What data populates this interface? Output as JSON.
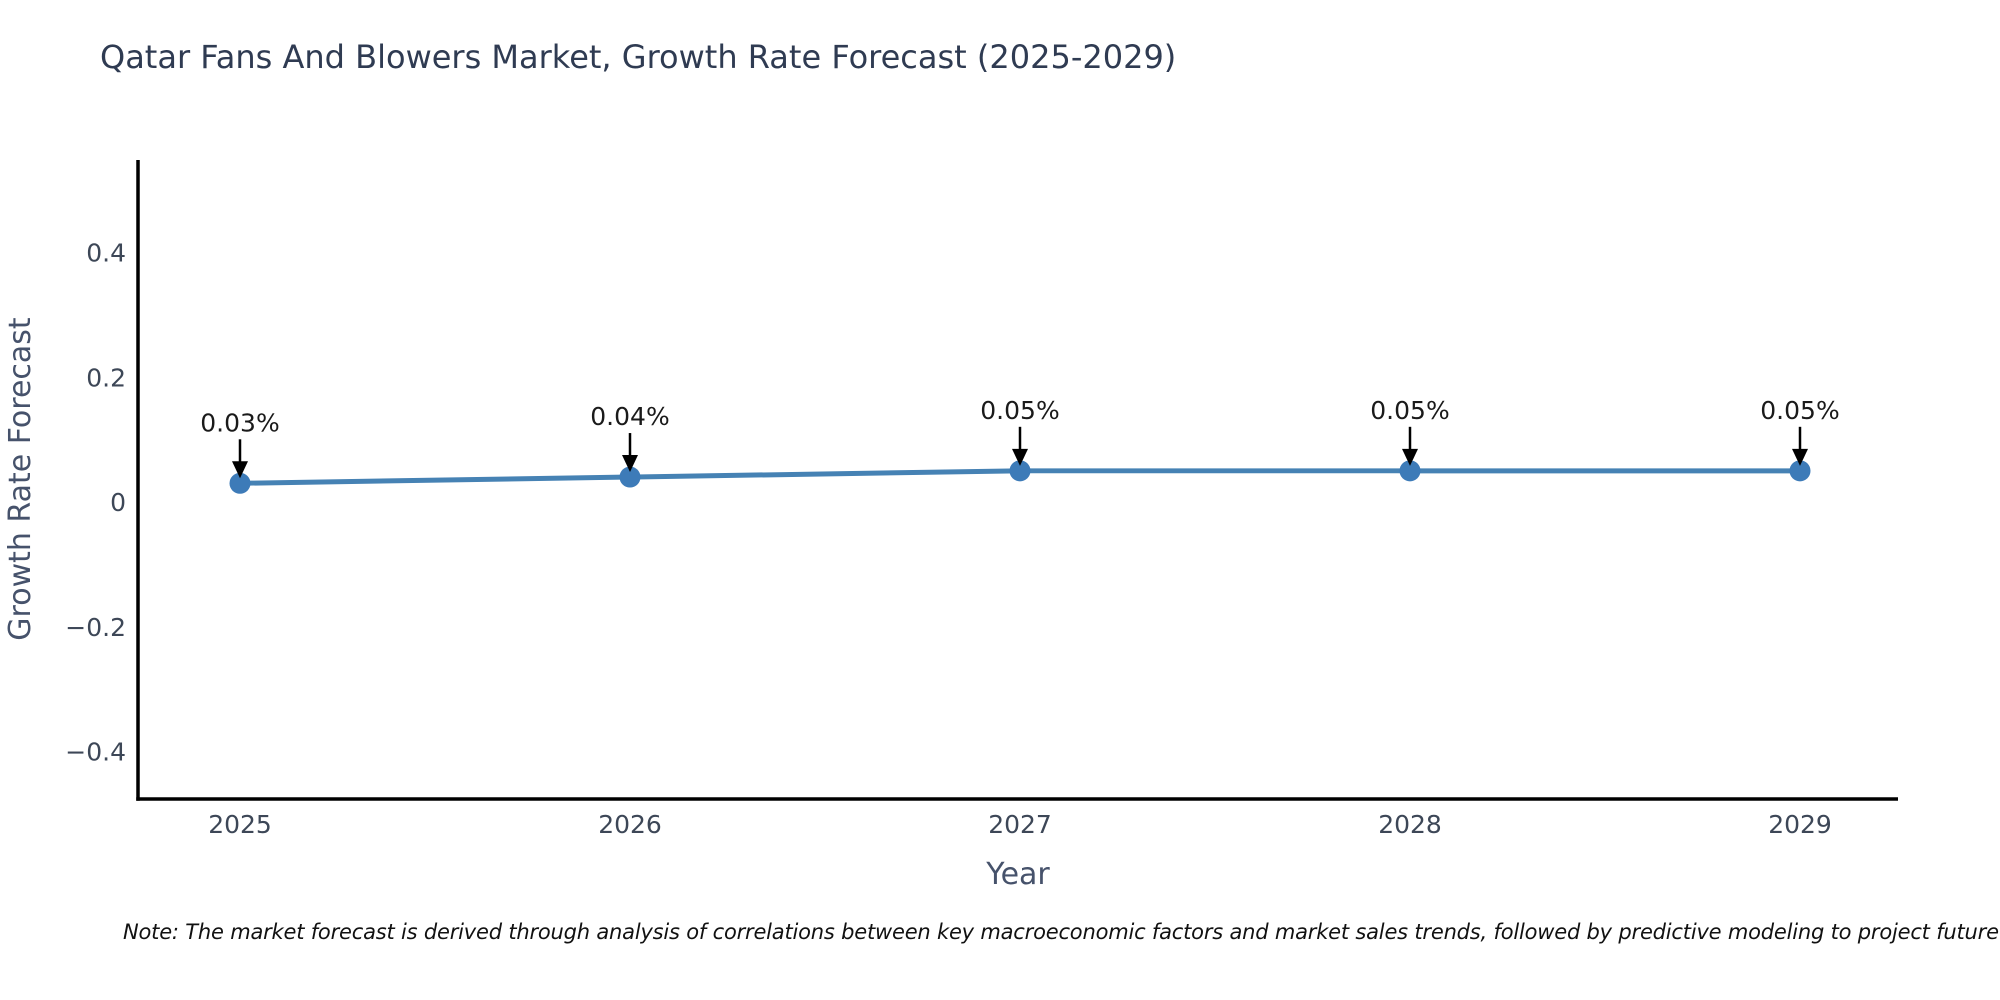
{
  "page": {
    "background": "#ffffff"
  },
  "chart_data": {
    "type": "line",
    "title": "Qatar Fans And Blowers Market, Growth Rate Forecast (2025-2029)",
    "xlabel": "Year",
    "ylabel": "Growth Rate Forecast",
    "x": [
      "2025",
      "2026",
      "2027",
      "2028",
      "2029"
    ],
    "series": [
      {
        "name": "Growth Rate Forecast",
        "values": [
          0.03,
          0.04,
          0.05,
          0.05,
          0.05
        ]
      }
    ],
    "point_labels": [
      "0.03%",
      "0.04%",
      "0.05%",
      "0.05%",
      "0.05%"
    ],
    "ytick_values": [
      0.4,
      0.2,
      0,
      -0.2,
      -0.4
    ],
    "ytick_labels": [
      "0.4",
      "0.2",
      "0",
      "−0.2",
      "−0.4"
    ],
    "ylim": [
      -0.48,
      0.55
    ],
    "grid": false,
    "legend_position": "none",
    "annotation_arrows": true,
    "colors": {
      "line": "#4682b4",
      "marker": "#3d7bb8",
      "axis": "#000000",
      "title_text": "#2f3b52",
      "tick_text": "#3d4757",
      "axis_label_text": "#46526b",
      "annotation_text": "#1a1a1a",
      "arrow": "#000000",
      "note_text": "#111111"
    }
  },
  "note": {
    "text": "Note: The market forecast is derived through analysis of correlations between key macroeconomic factors and market sales trends, followed by predictive modeling to project future sales"
  }
}
